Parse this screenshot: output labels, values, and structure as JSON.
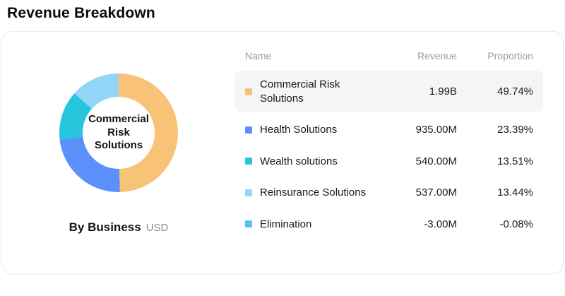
{
  "page": {
    "title": "Revenue Breakdown"
  },
  "card": {
    "center_label": "Commercial Risk Solutions",
    "footer": {
      "label": "By Business",
      "unit": "USD"
    },
    "table": {
      "headers": {
        "name": "Name",
        "revenue": "Revenue",
        "proportion": "Proportion"
      },
      "rows": [
        {
          "name": "Commercial Risk Solutions",
          "revenue": "1.99B",
          "proportion": "49.74%",
          "color": "#F8C377",
          "highlighted": true
        },
        {
          "name": "Health Solutions",
          "revenue": "935.00M",
          "proportion": "23.39%",
          "color": "#5B8FF9",
          "highlighted": false
        },
        {
          "name": "Wealth solutions",
          "revenue": "540.00M",
          "proportion": "13.51%",
          "color": "#25C5DC",
          "highlighted": false
        },
        {
          "name": "Reinsurance Solutions",
          "revenue": "537.00M",
          "proportion": "13.44%",
          "color": "#92D5F9",
          "highlighted": false
        },
        {
          "name": "Elimination",
          "revenue": "-3.00M",
          "proportion": "-0.08%",
          "color": "#55C0F8",
          "highlighted": false
        }
      ]
    }
  },
  "chart_data": {
    "type": "pie",
    "variant": "donut",
    "title": "Revenue Breakdown",
    "categories": [
      "Commercial Risk Solutions",
      "Health Solutions",
      "Wealth solutions",
      "Reinsurance Solutions",
      "Elimination"
    ],
    "values": [
      1990,
      935,
      540,
      537,
      -3
    ],
    "value_unit": "USD (millions)",
    "revenue_labels": [
      "1.99B",
      "935.00M",
      "540.00M",
      "537.00M",
      "-3.00M"
    ],
    "proportions_pct": [
      49.74,
      23.39,
      13.51,
      13.44,
      -0.08
    ],
    "colors": [
      "#F8C377",
      "#5B8FF9",
      "#25C5DC",
      "#92D5F9",
      "#55C0F8"
    ],
    "center_label": "Commercial Risk Solutions",
    "start_angle_deg": 0,
    "direction": "clockwise",
    "inner_radius_ratio": 0.6,
    "legend_position": "right-table",
    "footer_label": "By Business",
    "currency": "USD"
  }
}
